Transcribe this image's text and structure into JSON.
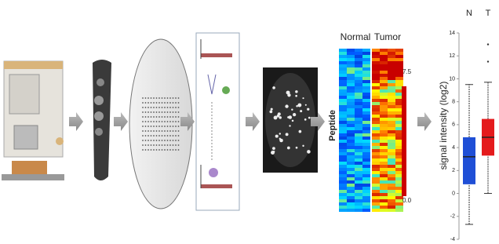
{
  "heatmap": {
    "columns": [
      "Normal",
      "Tumor"
    ],
    "row_label": "Peptide",
    "scale_max": "7.5",
    "scale_min": "0.0"
  },
  "boxplot": {
    "ylabel": "signal intensity (log2)",
    "categories": [
      "N",
      "T"
    ],
    "ylim": [
      -4,
      14
    ],
    "yticks": [
      -4,
      -2,
      0,
      2,
      4,
      6,
      8,
      10,
      12,
      14
    ],
    "series": [
      {
        "name": "N",
        "color": "#1f4fd6",
        "whisker_low": -2.7,
        "q1": 0.8,
        "median": 3.2,
        "q3": 4.9,
        "whisker_high": 9.5,
        "outliers": []
      },
      {
        "name": "T",
        "color": "#e41a1c",
        "whisker_low": 0,
        "q1": 3.3,
        "median": 4.9,
        "q3": 6.5,
        "whisker_high": 9.7,
        "outliers": [
          11.5,
          13
        ]
      }
    ]
  }
}
